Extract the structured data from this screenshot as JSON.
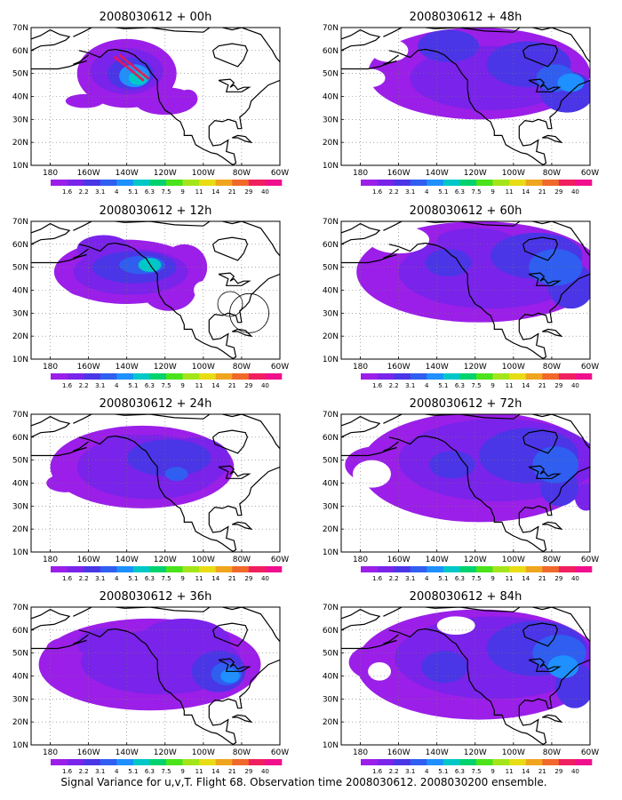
{
  "figure": {
    "caption": "Signal Variance for u,v,T. Flight 68. Observation time 2008030612. 2008030200 ensemble."
  },
  "panels": [
    {
      "title": "2008030612 + 00h",
      "lead_hours": 0
    },
    {
      "title": "2008030612 + 48h",
      "lead_hours": 48
    },
    {
      "title": "2008030612 + 12h",
      "lead_hours": 12
    },
    {
      "title": "2008030612 + 60h",
      "lead_hours": 60
    },
    {
      "title": "2008030612 + 24h",
      "lead_hours": 24
    },
    {
      "title": "2008030612 + 72h",
      "lead_hours": 72
    },
    {
      "title": "2008030612 + 36h",
      "lead_hours": 36
    },
    {
      "title": "2008030612 + 84h",
      "lead_hours": 84
    }
  ],
  "axes": {
    "lat_labels": [
      "70N",
      "60N",
      "50N",
      "40N",
      "30N",
      "20N",
      "10N"
    ],
    "lon_labels": [
      "180",
      "160W",
      "140W",
      "120W",
      "100W",
      "80W",
      "60W"
    ],
    "lat_range": [
      10,
      70
    ],
    "lon_range": [
      -190,
      -60
    ],
    "grid": "dotted"
  },
  "colorbar": {
    "labels": [
      "1.6",
      "2.2",
      "3.1",
      "4",
      "5.1",
      "6.3",
      "7.5",
      "9",
      "11",
      "14",
      "21",
      "29",
      "40"
    ],
    "colors": [
      "#9b1fe8",
      "#7a23ea",
      "#4a36e6",
      "#2f5ef0",
      "#1e90ff",
      "#00c8c8",
      "#00d26e",
      "#4be31c",
      "#a4e51a",
      "#e8dc14",
      "#f0a51e",
      "#f0682a",
      "#f02060",
      "#f0108c"
    ]
  }
}
